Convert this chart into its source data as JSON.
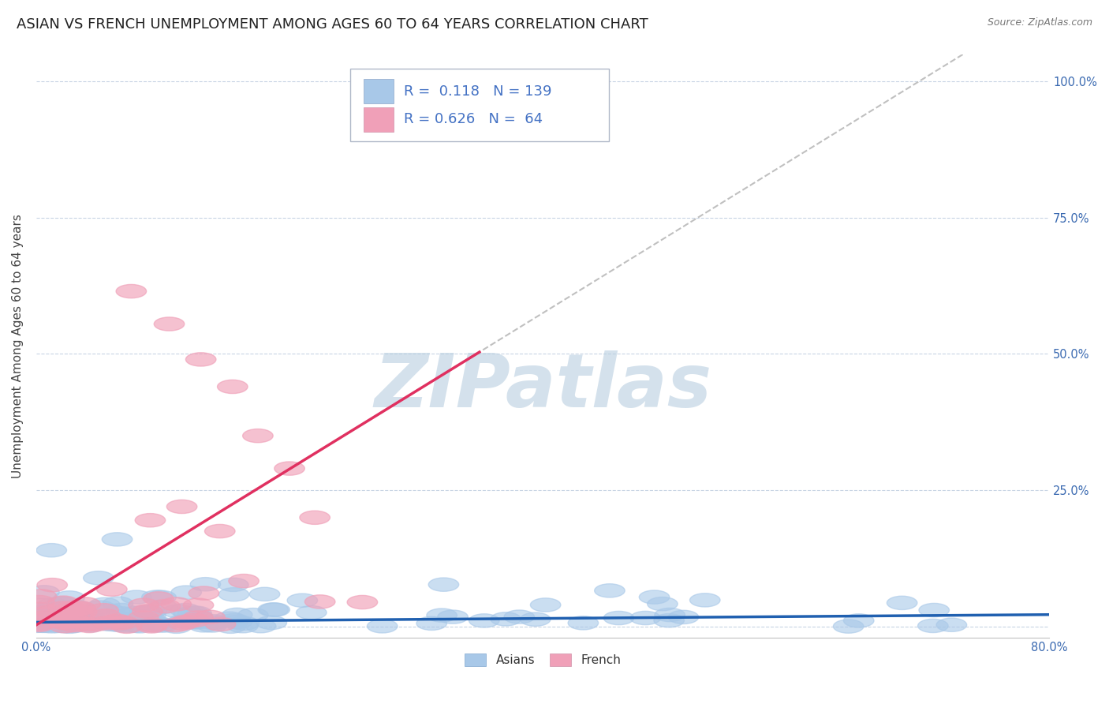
{
  "title": "ASIAN VS FRENCH UNEMPLOYMENT AMONG AGES 60 TO 64 YEARS CORRELATION CHART",
  "source": "Source: ZipAtlas.com",
  "ylabel": "Unemployment Among Ages 60 to 64 years",
  "xlim": [
    0.0,
    0.8
  ],
  "ylim": [
    -0.02,
    1.05
  ],
  "xticks": [
    0.0,
    0.8
  ],
  "xticklabels": [
    "0.0%",
    "80.0%"
  ],
  "ytick_positions": [
    0.0,
    0.25,
    0.5,
    0.75,
    1.0
  ],
  "ytick_labels_left": [
    "",
    "",
    "",
    "",
    ""
  ],
  "ytick_labels_right": [
    "",
    "25.0%",
    "50.0%",
    "75.0%",
    "100.0%"
  ],
  "asian_color": "#a8c8e8",
  "french_color": "#f0a0b8",
  "asian_line_color": "#2060b0",
  "french_line_color": "#e03060",
  "asian_R": 0.118,
  "asian_N": 139,
  "french_R": 0.626,
  "french_N": 64,
  "watermark": "ZIPatlas",
  "watermark_color": "#b8cee0",
  "legend_text_color": "#4472c4",
  "background_color": "#ffffff",
  "grid_color": "#c8d4e4",
  "title_fontsize": 13,
  "axis_label_fontsize": 11,
  "tick_fontsize": 10.5,
  "legend_fontsize": 13
}
